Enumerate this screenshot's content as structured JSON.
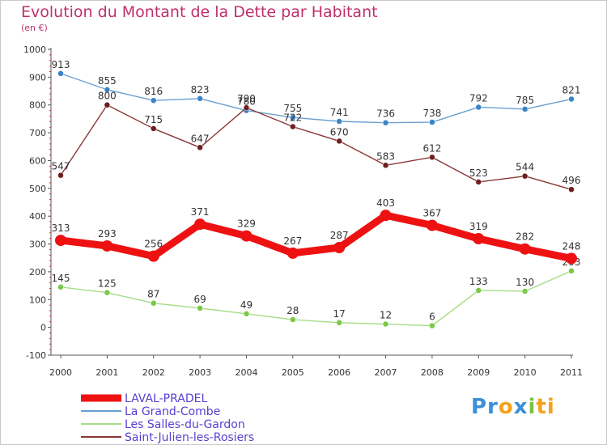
{
  "chart_data": {
    "type": "line",
    "title": "Evolution du Montant de la Dette par Habitant",
    "subtitle": "(en €)",
    "categories": [
      "2000",
      "2001",
      "2002",
      "2003",
      "2004",
      "2005",
      "2006",
      "2007",
      "2008",
      "2009",
      "2010",
      "2011"
    ],
    "ylim": [
      -100,
      1000
    ],
    "yticks": [
      "-100",
      "0",
      "100",
      "200",
      "300",
      "400",
      "500",
      "600",
      "700",
      "800",
      "900",
      "1000"
    ],
    "grid": false,
    "legend_position": "bottom-left",
    "series": [
      {
        "name": "LAVAL-PRADEL",
        "color": "#ee1111",
        "emphasis": true,
        "values": [
          313,
          293,
          256,
          371,
          329,
          267,
          287,
          403,
          367,
          319,
          282,
          248
        ],
        "labels": [
          "313",
          "293",
          "256",
          "371",
          "329",
          "267",
          "287",
          "403",
          "367",
          "319",
          "282",
          "248"
        ]
      },
      {
        "name": "La Grand-Combe",
        "color": "#6a9fd0",
        "point_color": "#3a84c9",
        "values": [
          913,
          855,
          816,
          823,
          780,
          755,
          741,
          736,
          738,
          792,
          785,
          821
        ],
        "labels": [
          "913",
          "855",
          "816",
          "823",
          "780",
          "755",
          "741",
          "736",
          "738",
          "792",
          "785",
          "821"
        ]
      },
      {
        "name": "Les Salles-du-Gardon",
        "color": "#a6dc84",
        "point_color": "#7cc84a",
        "values": [
          145,
          125,
          87,
          69,
          49,
          28,
          17,
          12,
          6,
          133,
          130,
          203
        ],
        "labels": [
          "145",
          "125",
          "87",
          "69",
          "49",
          "28",
          "17",
          "12",
          "6",
          "133",
          "130",
          "203"
        ]
      },
      {
        "name": "Saint-Julien-les-Rosiers",
        "color": "#8a3636",
        "point_color": "#6e1e1e",
        "values": [
          547,
          800,
          715,
          647,
          790,
          722,
          670,
          583,
          612,
          523,
          544,
          496
        ],
        "labels": [
          "547",
          "800",
          "715",
          "647",
          "790",
          "722",
          "670",
          "583",
          "612",
          "523",
          "544",
          "496"
        ]
      }
    ]
  },
  "logo": {
    "parts": [
      {
        "text": "Pr",
        "color": "#3a8fd8"
      },
      {
        "text": "o",
        "color": "#f3a21b"
      },
      {
        "text": "x",
        "color": "#3a8fd8"
      },
      {
        "text": "i",
        "color": "#7cc242"
      },
      {
        "text": "ti",
        "color": "#f3a21b"
      }
    ]
  }
}
